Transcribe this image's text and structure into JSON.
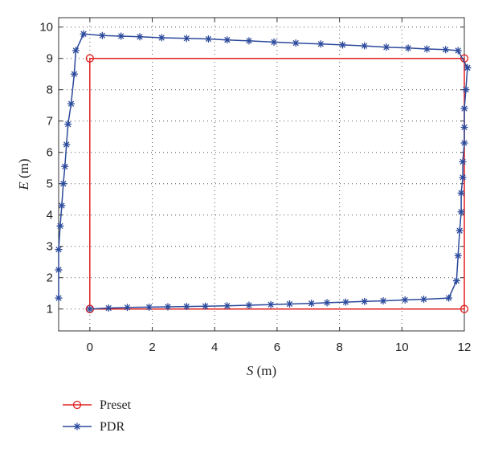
{
  "chart_data": {
    "type": "line",
    "xlabel": "S (m)",
    "ylabel": "E (m)",
    "xlabel_var": "S",
    "xlabel_unit": " (m)",
    "ylabel_var": "E",
    "ylabel_unit": " (m)",
    "xlim": [
      -1,
      12
    ],
    "ylim": [
      0.3,
      10.3
    ],
    "xticks": [
      0,
      2,
      4,
      6,
      8,
      10,
      12
    ],
    "yticks": [
      1,
      2,
      3,
      4,
      5,
      6,
      7,
      8,
      9,
      10
    ],
    "grid": "dotted",
    "legend_position": "below-left",
    "series": [
      {
        "name": "Preset",
        "color": "#e02020",
        "marker": "circle",
        "x": [
          0,
          0,
          12,
          12,
          0
        ],
        "y": [
          1,
          9,
          9,
          1,
          1
        ]
      },
      {
        "name": "PDR",
        "color": "#2c4a9c",
        "marker": "star",
        "x": [
          0,
          0.6,
          1.2,
          1.9,
          2.5,
          3.1,
          3.7,
          4.4,
          5.1,
          5.8,
          6.4,
          7.1,
          7.6,
          8.2,
          8.8,
          9.4,
          10.1,
          10.7,
          11.5,
          11.75,
          11.8,
          11.85,
          11.9,
          11.9,
          11.95,
          11.95,
          12.0,
          12.0,
          12.0,
          12.05,
          12.1,
          12.1,
          11.8,
          11.4,
          10.8,
          10.2,
          9.5,
          8.8,
          8.1,
          7.4,
          6.6,
          5.9,
          5.1,
          4.4,
          3.8,
          3.1,
          2.3,
          1.6,
          1.0,
          0.4,
          -0.2,
          -0.45,
          -0.5,
          -0.6,
          -0.7,
          -0.75,
          -0.8,
          -0.85,
          -0.9,
          -0.95,
          -1.0,
          -1.0,
          -1.0
        ],
        "y": [
          1.0,
          1.03,
          1.05,
          1.06,
          1.07,
          1.08,
          1.09,
          1.1,
          1.12,
          1.14,
          1.16,
          1.18,
          1.2,
          1.22,
          1.24,
          1.26,
          1.29,
          1.31,
          1.35,
          1.9,
          2.7,
          3.5,
          4.1,
          4.7,
          5.2,
          5.7,
          6.3,
          6.8,
          7.4,
          8.0,
          8.7,
          8.7,
          9.25,
          9.28,
          9.3,
          9.33,
          9.36,
          9.4,
          9.43,
          9.46,
          9.49,
          9.52,
          9.56,
          9.59,
          9.62,
          9.64,
          9.66,
          9.69,
          9.71,
          9.73,
          9.78,
          9.25,
          8.5,
          7.55,
          6.9,
          6.25,
          5.55,
          5.0,
          4.3,
          3.65,
          2.9,
          2.25,
          1.35
        ]
      }
    ]
  }
}
